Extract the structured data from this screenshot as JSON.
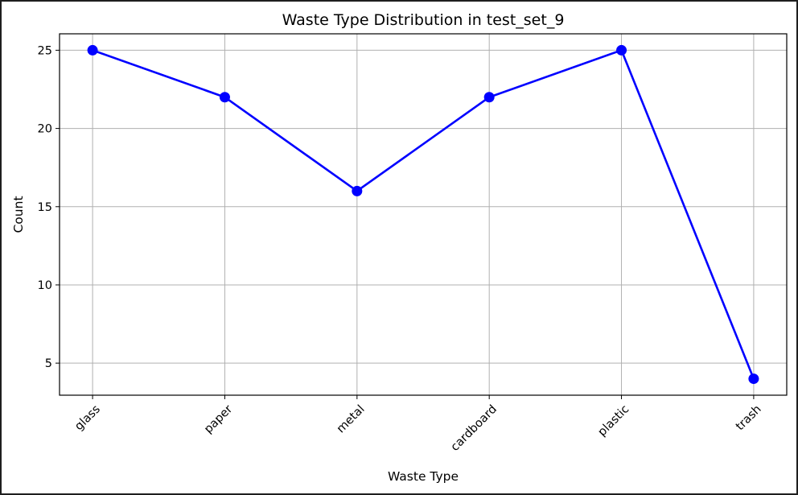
{
  "chart_data": {
    "type": "line",
    "title": "Waste Type Distribution in test_set_9",
    "xlabel": "Waste Type",
    "ylabel": "Count",
    "categories": [
      "glass",
      "paper",
      "metal",
      "cardboard",
      "plastic",
      "trash"
    ],
    "series": [
      {
        "values": [
          25,
          22,
          16,
          22,
          25,
          4
        ]
      }
    ],
    "ylim": [
      2.95,
      26.05
    ],
    "yticks": [
      5,
      10,
      15,
      20,
      25
    ],
    "grid": true,
    "line_color": "#0000ff",
    "marker": "circle",
    "x_tick_rotation": -45
  }
}
